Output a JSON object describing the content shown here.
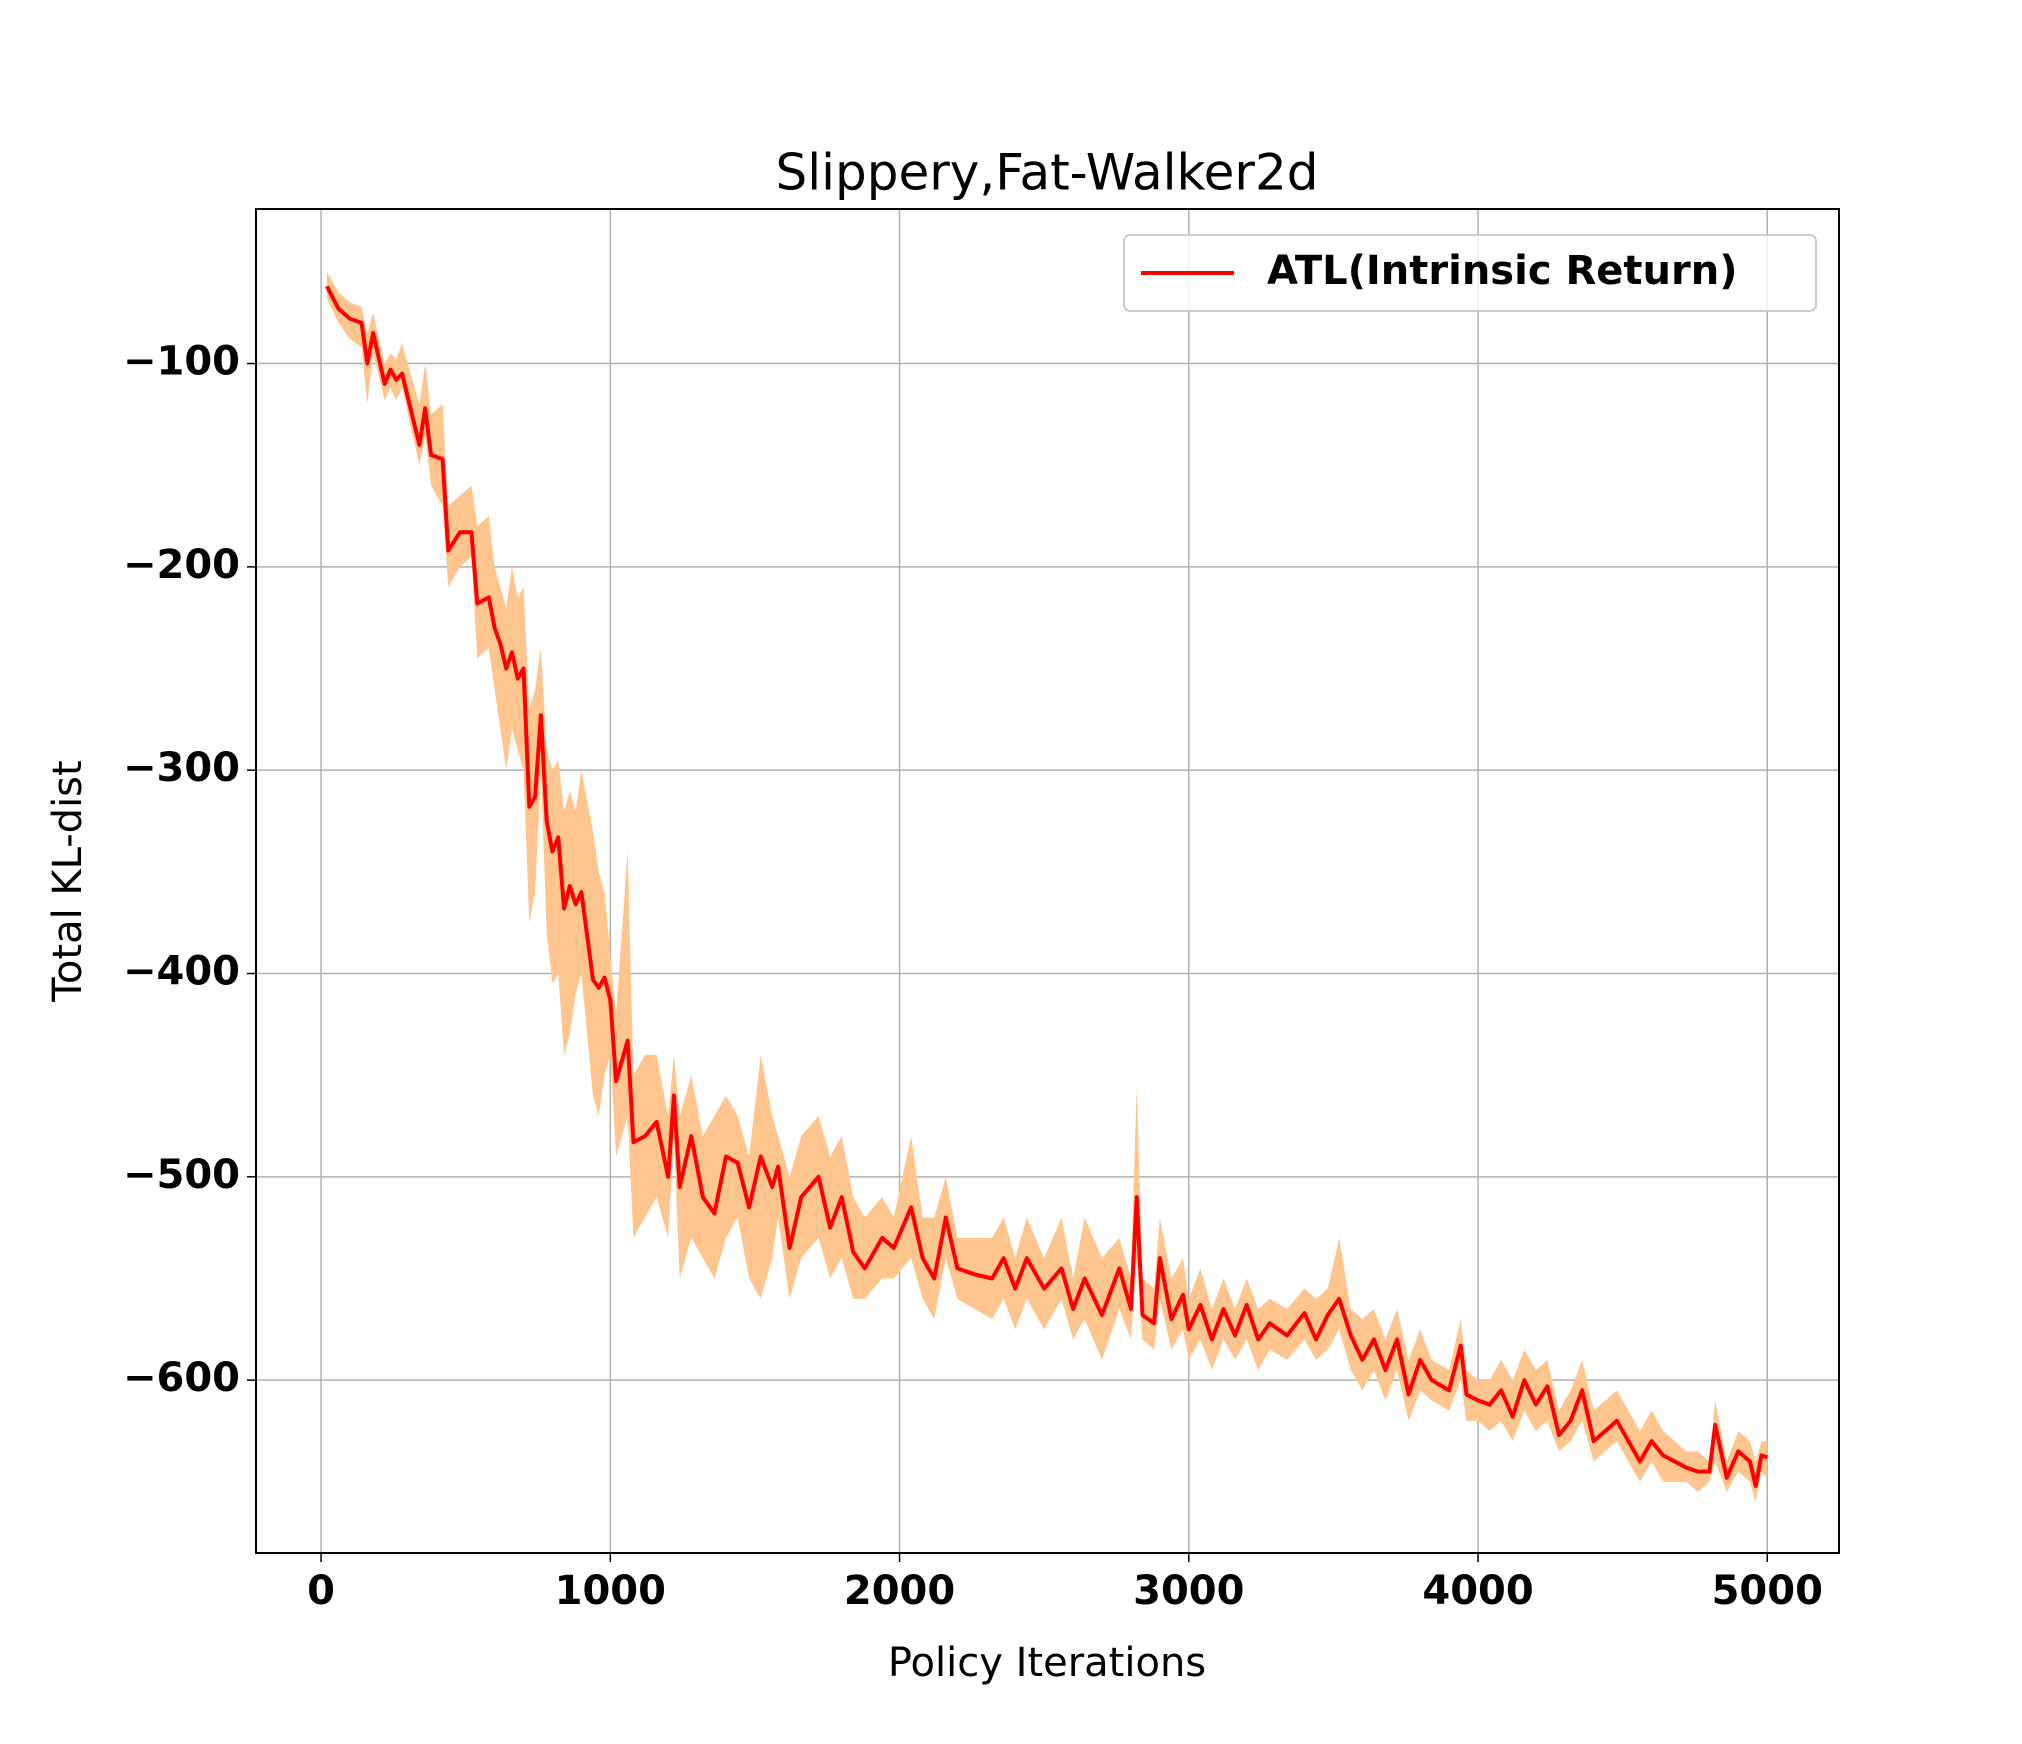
{
  "chart_data": {
    "type": "line",
    "title": "Slippery,Fat-Walker2d",
    "xlabel": "Policy Iterations",
    "ylabel": "Total KL-dist",
    "xlim": [
      -225,
      5248
    ],
    "ylim": [
      -685,
      -24
    ],
    "xticks": [
      0,
      1000,
      2000,
      3000,
      4000,
      5000
    ],
    "yticks": [
      {
        "value": -600,
        "label": "−600"
      },
      {
        "value": -500,
        "label": "−500"
      },
      {
        "value": -400,
        "label": "−400"
      },
      {
        "value": -300,
        "label": "−300"
      },
      {
        "value": -200,
        "label": "−200"
      },
      {
        "value": -100,
        "label": "−100"
      }
    ],
    "grid": true,
    "legend": "upper right",
    "x": [
      20,
      60,
      100,
      140,
      160,
      180,
      220,
      240,
      260,
      280,
      340,
      360,
      380,
      420,
      440,
      480,
      520,
      540,
      580,
      600,
      620,
      640,
      660,
      680,
      700,
      720,
      740,
      760,
      780,
      800,
      820,
      840,
      860,
      880,
      900,
      940,
      960,
      980,
      1000,
      1020,
      1060,
      1080,
      1120,
      1160,
      1200,
      1220,
      1240,
      1280,
      1320,
      1360,
      1400,
      1440,
      1480,
      1520,
      1560,
      1580,
      1620,
      1660,
      1720,
      1760,
      1800,
      1840,
      1880,
      1940,
      1980,
      2040,
      2080,
      2120,
      2160,
      2200,
      2260,
      2320,
      2360,
      2400,
      2440,
      2500,
      2560,
      2600,
      2640,
      2700,
      2760,
      2800,
      2820,
      2840,
      2880,
      2900,
      2940,
      2980,
      3000,
      3040,
      3080,
      3120,
      3160,
      3200,
      3240,
      3280,
      3340,
      3400,
      3440,
      3480,
      3520,
      3560,
      3600,
      3640,
      3680,
      3720,
      3760,
      3800,
      3840,
      3900,
      3940,
      3960,
      4000,
      4040,
      4080,
      4120,
      4160,
      4200,
      4240,
      4280,
      4320,
      4360,
      4400,
      4440,
      4480,
      4520,
      4560,
      4600,
      4640,
      4680,
      4720,
      4760,
      4800,
      4820,
      4860,
      4900,
      4940,
      4960,
      4980,
      5000
    ],
    "series": [
      {
        "name": "ATL(Intrinsic Return)",
        "color": "#ff0000",
        "values": [
          -62,
          -73,
          -78,
          -80,
          -100,
          -85,
          -110,
          -103,
          -108,
          -105,
          -140,
          -122,
          -145,
          -147,
          -192,
          -183,
          -183,
          -218,
          -215,
          -230,
          -238,
          -250,
          -242,
          -255,
          -250,
          -318,
          -313,
          -273,
          -325,
          -340,
          -333,
          -368,
          -357,
          -366,
          -360,
          -403,
          -407,
          -402,
          -413,
          -453,
          -433,
          -483,
          -480,
          -473,
          -500,
          -460,
          -505,
          -480,
          -510,
          -518,
          -490,
          -493,
          -515,
          -490,
          -505,
          -495,
          -535,
          -510,
          -500,
          -525,
          -510,
          -537,
          -545,
          -530,
          -535,
          -515,
          -540,
          -550,
          -520,
          -545,
          -548,
          -550,
          -540,
          -555,
          -540,
          -555,
          -545,
          -565,
          -550,
          -568,
          -545,
          -565,
          -510,
          -568,
          -572,
          -540,
          -570,
          -558,
          -575,
          -563,
          -580,
          -565,
          -578,
          -563,
          -580,
          -572,
          -578,
          -567,
          -580,
          -568,
          -560,
          -578,
          -590,
          -580,
          -595,
          -580,
          -607,
          -590,
          -600,
          -605,
          -583,
          -607,
          -610,
          -612,
          -605,
          -618,
          -600,
          -612,
          -603,
          -627,
          -620,
          -605,
          -630,
          -625,
          -620,
          -630,
          -640,
          -630,
          -637,
          -640,
          -643,
          -645,
          -645,
          -622,
          -648,
          -635,
          -640,
          -652,
          -637,
          -638
        ]
      }
    ],
    "band": {
      "color": "#ffc58f",
      "lower": [
        -68,
        -80,
        -88,
        -92,
        -120,
        -95,
        -118,
        -112,
        -118,
        -112,
        -150,
        -135,
        -160,
        -170,
        -210,
        -200,
        -195,
        -245,
        -240,
        -260,
        -280,
        -300,
        -280,
        -290,
        -300,
        -375,
        -360,
        -300,
        -380,
        -405,
        -400,
        -440,
        -430,
        -410,
        -400,
        -460,
        -470,
        -450,
        -440,
        -490,
        -470,
        -530,
        -520,
        -510,
        -530,
        -480,
        -550,
        -530,
        -540,
        -550,
        -530,
        -520,
        -550,
        -560,
        -540,
        -520,
        -560,
        -540,
        -530,
        -550,
        -540,
        -560,
        -560,
        -550,
        -550,
        -540,
        -560,
        -570,
        -540,
        -560,
        -565,
        -570,
        -560,
        -575,
        -560,
        -575,
        -560,
        -580,
        -570,
        -590,
        -565,
        -580,
        -540,
        -580,
        -585,
        -560,
        -585,
        -575,
        -590,
        -580,
        -595,
        -580,
        -590,
        -580,
        -595,
        -585,
        -590,
        -580,
        -590,
        -585,
        -575,
        -595,
        -605,
        -595,
        -610,
        -595,
        -620,
        -605,
        -610,
        -615,
        -600,
        -620,
        -620,
        -625,
        -620,
        -630,
        -615,
        -625,
        -620,
        -635,
        -630,
        -620,
        -640,
        -635,
        -630,
        -640,
        -650,
        -640,
        -650,
        -650,
        -650,
        -655,
        -650,
        -640,
        -655,
        -645,
        -650,
        -660,
        -645,
        -648
      ],
      "upper": [
        -55,
        -65,
        -70,
        -72,
        -85,
        -75,
        -100,
        -95,
        -98,
        -90,
        -120,
        -100,
        -125,
        -120,
        -170,
        -165,
        -160,
        -180,
        -175,
        -200,
        -210,
        -220,
        -200,
        -215,
        -210,
        -270,
        -260,
        -240,
        -290,
        -300,
        -295,
        -320,
        -310,
        -320,
        -300,
        -330,
        -350,
        -360,
        -390,
        -420,
        -340,
        -450,
        -440,
        -440,
        -470,
        -440,
        -470,
        -450,
        -480,
        -470,
        -460,
        -470,
        -490,
        -440,
        -470,
        -480,
        -500,
        -480,
        -470,
        -490,
        -480,
        -510,
        -520,
        -510,
        -520,
        -480,
        -520,
        -520,
        -500,
        -530,
        -530,
        -530,
        -520,
        -540,
        -520,
        -540,
        -520,
        -550,
        -520,
        -540,
        -530,
        -550,
        -455,
        -550,
        -555,
        -520,
        -550,
        -540,
        -560,
        -545,
        -565,
        -550,
        -565,
        -550,
        -565,
        -560,
        -565,
        -555,
        -560,
        -555,
        -530,
        -565,
        -570,
        -565,
        -580,
        -565,
        -590,
        -575,
        -590,
        -595,
        -570,
        -595,
        -600,
        -600,
        -590,
        -600,
        -585,
        -595,
        -590,
        -615,
        -605,
        -590,
        -615,
        -610,
        -605,
        -615,
        -625,
        -615,
        -625,
        -630,
        -635,
        -635,
        -640,
        -610,
        -640,
        -625,
        -630,
        -640,
        -630,
        -630
      ]
    }
  }
}
